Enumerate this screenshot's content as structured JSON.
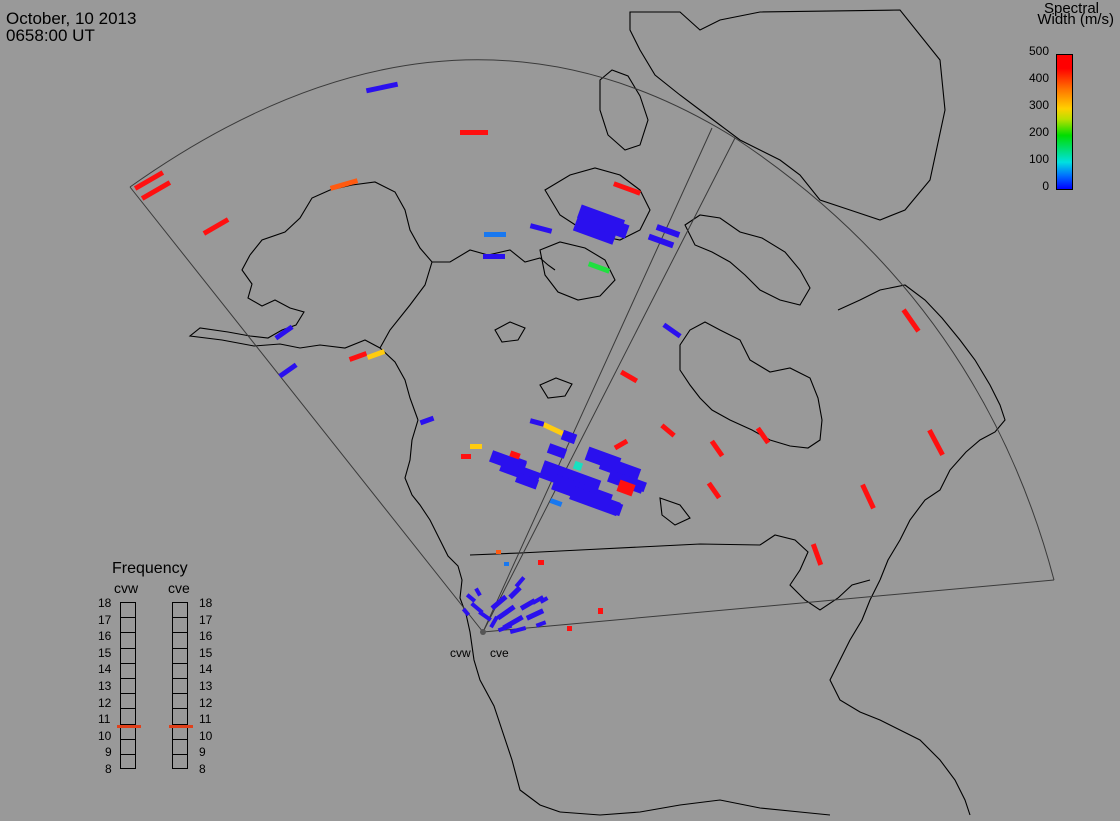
{
  "header": {
    "date": "October, 10 2013",
    "time": "0658:00 UT"
  },
  "colorbar": {
    "title_line1": "Spectral",
    "title_line2": "Width (m/s)",
    "ticks": [
      "500",
      "400",
      "300",
      "200",
      "100",
      "0"
    ]
  },
  "frequency_panel": {
    "title": "Frequency",
    "radars": [
      "cvw",
      "cve"
    ],
    "scale": [
      "18",
      "17",
      "16",
      "15",
      "14",
      "13",
      "12",
      "11",
      "10",
      "9",
      "8"
    ],
    "marker_value_mhz": [
      10.6,
      10.6
    ]
  },
  "sites": [
    "cvw",
    "cve"
  ],
  "colors": {
    "background": "#999999",
    "blue": "#2a10ee",
    "lightblue": "#1878f0",
    "red": "#ff1010",
    "orange": "#ff5a10",
    "yellow": "#ffcc10",
    "green": "#20e040",
    "cyan": "#18e0c0"
  }
}
